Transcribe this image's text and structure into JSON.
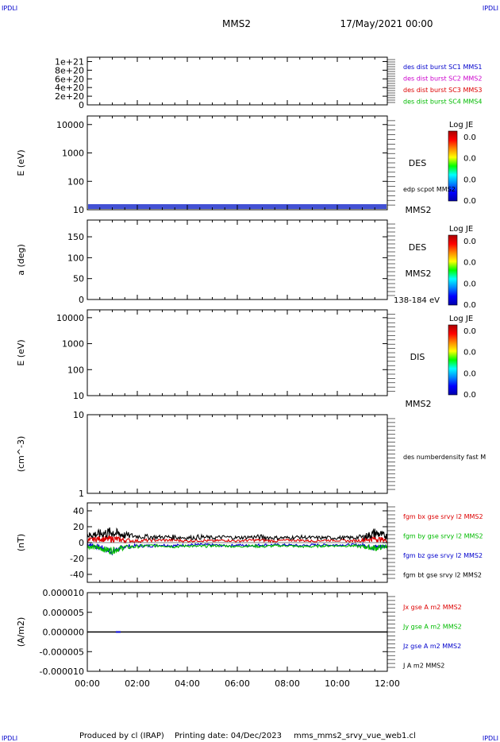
{
  "header": {
    "corner_left_top": "IPDLI",
    "corner_right_top": "IPDLI",
    "spacecraft": "MMS2",
    "date": "17/May/2021 00:00"
  },
  "footer": {
    "produced_by": "Produced by cl (IRAP)",
    "printing_date": "Printing date: 04/Dec/2023",
    "plot_file": "mms_mms2_srvy_vue_web1.cl",
    "corner_left_bottom": "IPDLI",
    "corner_right_bottom": "IPDLI"
  },
  "colors": {
    "mms1": "#0000cc",
    "mms2": "#cc00cc",
    "mms3": "#dd0000",
    "mms4": "#00bb00",
    "bx": "#dd0000",
    "by": "#00bb00",
    "bz": "#0000cc",
    "bt": "#000000"
  },
  "colorbar": {
    "title": "Log JE",
    "ticks": [
      "0.0",
      "0.0",
      "0.0",
      "0.0"
    ],
    "colors": [
      "#aa0000",
      "#ff0000",
      "#ff8800",
      "#ffff00",
      "#00ff00",
      "#00ffff",
      "#0088ff",
      "#0000ff",
      "#0000aa"
    ]
  },
  "chart_data": [
    {
      "type": "line",
      "panel": "des-dist-burst",
      "ylabel": "",
      "ylim": [
        0,
        1.1e+21
      ],
      "ytick_labels": [
        "1e+21",
        "8e+20",
        "6e+20",
        "4e+20",
        "2e+20",
        "0"
      ],
      "yticks": [
        1e+21,
        8e+20,
        6e+20,
        4e+20,
        2e+20,
        0
      ],
      "legend": [
        "des dist burst SC1 MMS1",
        "des dist burst SC2 MMS2",
        "des dist burst SC3 MMS3",
        "des dist burst SC4 MMS4"
      ],
      "baseline": 0
    },
    {
      "type": "heatmap",
      "panel": "des-energy-spectrogram",
      "ylabel": "E (eV)",
      "scale": "log",
      "ylim": [
        10,
        20000
      ],
      "ytick_labels": [
        "10000",
        "1000",
        "100",
        "10"
      ],
      "yticks": [
        10000,
        1000,
        100,
        10
      ],
      "labels": [
        "DES",
        "edp scpot MMS2",
        "MMS2"
      ]
    },
    {
      "type": "heatmap",
      "panel": "des-pitch-angle",
      "ylabel": "a (deg)",
      "ylim": [
        0,
        190
      ],
      "ytick_labels": [
        "150",
        "100",
        "50",
        "0"
      ],
      "yticks": [
        150,
        100,
        50,
        0
      ],
      "labels": [
        "DES",
        "MMS2",
        "138-184 eV"
      ]
    },
    {
      "type": "heatmap",
      "panel": "dis-energy-spectrogram",
      "ylabel": "E (eV)",
      "scale": "log",
      "ylim": [
        10,
        20000
      ],
      "ytick_labels": [
        "10000",
        "1000",
        "100",
        "10"
      ],
      "yticks": [
        10000,
        1000,
        100,
        10
      ],
      "labels": [
        "DIS",
        "MMS2"
      ]
    },
    {
      "type": "line",
      "panel": "des-density",
      "ylabel": "(cm^-3)",
      "scale": "log",
      "ylim": [
        1,
        10
      ],
      "ytick_labels": [
        "10",
        "1"
      ],
      "yticks": [
        10,
        1
      ],
      "legend": [
        "des numberdensity fast M"
      ]
    },
    {
      "type": "line",
      "panel": "fgm-magnetic-field",
      "ylabel": "(nT)",
      "ylim": [
        -50,
        50
      ],
      "ytick_labels": [
        "40",
        "20",
        "0",
        "-20",
        "-40"
      ],
      "yticks": [
        40,
        20,
        0,
        -20,
        -40
      ],
      "x_hours": [
        0,
        0.25,
        0.5,
        0.75,
        1,
        1.25,
        1.5,
        2,
        2.5,
        3,
        3.5,
        4,
        4.5,
        5,
        5.5,
        6,
        6.5,
        7,
        7.5,
        8,
        8.5,
        9,
        9.5,
        10,
        10.5,
        11,
        11.25,
        11.5,
        11.75,
        12
      ],
      "series": [
        {
          "name": "fgm bx gse srvy l2 MMS2",
          "values": [
            3,
            4,
            5,
            4,
            5,
            4,
            3,
            2,
            3,
            3,
            3,
            2,
            3,
            2,
            3,
            2,
            3,
            3,
            2,
            3,
            3,
            2,
            3,
            3,
            2,
            3,
            4,
            5,
            4,
            3
          ]
        },
        {
          "name": "fgm by gse srvy l2 MMS2",
          "values": [
            -5,
            -6,
            -7,
            -9,
            -10,
            -8,
            -6,
            -5,
            -4,
            -4,
            -5,
            -4,
            -5,
            -4,
            -4,
            -5,
            -4,
            -5,
            -4,
            -4,
            -5,
            -5,
            -4,
            -4,
            -4,
            -5,
            -6,
            -7,
            -6,
            -5
          ]
        },
        {
          "name": "fgm bz gse srvy l2 MMS2",
          "values": [
            -2,
            -4,
            -6,
            -9,
            -11,
            -8,
            -5,
            -4,
            -4,
            -3,
            -4,
            -3,
            -3,
            -3,
            -4,
            -3,
            -4,
            -3,
            -3,
            -3,
            -4,
            -3,
            -3,
            -3,
            -3,
            -3,
            -5,
            -6,
            -5,
            -4
          ]
        },
        {
          "name": "fgm bt gse srvy l2 MMS2",
          "values": [
            9,
            10,
            11,
            12,
            13,
            11,
            9,
            8,
            7,
            7,
            7,
            6,
            7,
            6,
            7,
            6,
            7,
            7,
            6,
            6,
            7,
            6,
            6,
            6,
            6,
            7,
            9,
            12,
            10,
            8
          ]
        }
      ],
      "spread": [
        5,
        6,
        7,
        8,
        9,
        7,
        6,
        4,
        4,
        3,
        4,
        3,
        4,
        3,
        3,
        3,
        3,
        4,
        3,
        3,
        3,
        3,
        3,
        3,
        3,
        4,
        6,
        8,
        6,
        5
      ]
    },
    {
      "type": "line",
      "panel": "curlometer-current",
      "ylabel": "(A/m2)",
      "ylim": [
        -1e-05,
        1e-05
      ],
      "ytick_labels": [
        "0.000010",
        "0.000005",
        "0.000000",
        "-0.000005",
        "-0.000010"
      ],
      "yticks": [
        1e-05,
        5e-06,
        0,
        -5e-06,
        -1e-05
      ],
      "legend": [
        "Jx gse A m2 MMS2",
        "Jy gse A m2 MMS2",
        "Jz gse A m2 MMS2",
        "J A m2 MMS2"
      ],
      "values": 0
    }
  ],
  "x_axis": {
    "range_hours": [
      0,
      12
    ],
    "tick_labels": [
      "00:00",
      "02:00",
      "04:00",
      "06:00",
      "08:00",
      "10:00",
      "12:00"
    ],
    "ticks_hours": [
      0,
      2,
      4,
      6,
      8,
      10,
      12
    ]
  }
}
